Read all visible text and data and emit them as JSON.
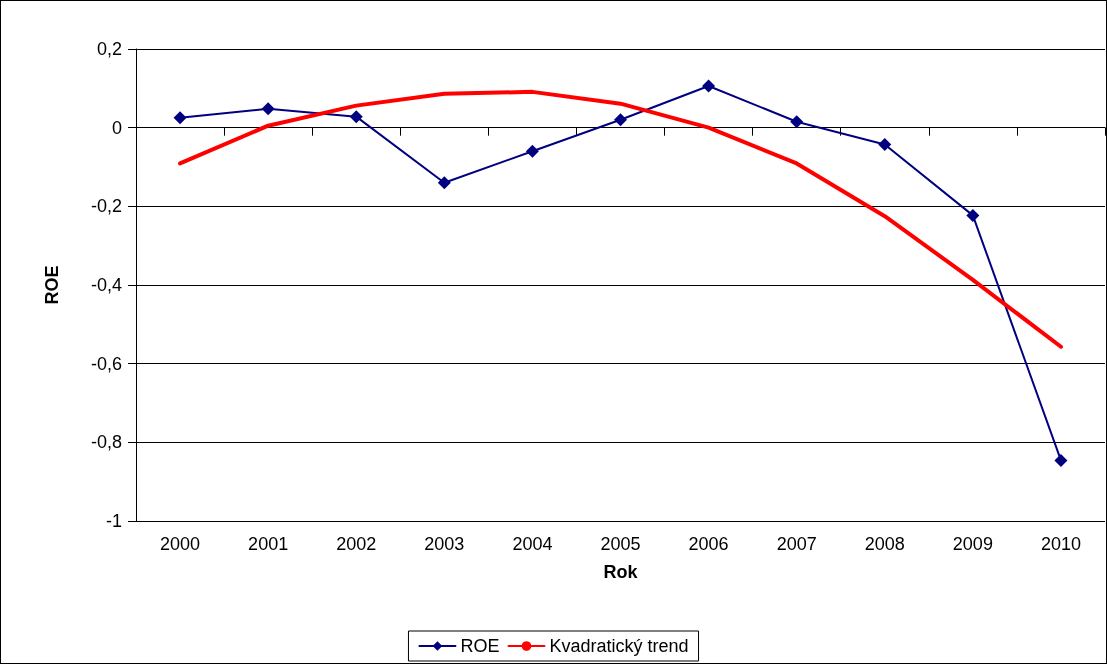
{
  "chart_data": {
    "type": "line",
    "xlabel": "Rok",
    "ylabel": "ROE",
    "categories": [
      "2000",
      "2001",
      "2002",
      "2003",
      "2004",
      "2005",
      "2006",
      "2007",
      "2008",
      "2009",
      "2010"
    ],
    "series": [
      {
        "name": "ROE",
        "color": "#000080",
        "marker": "diamond",
        "values": [
          0.025,
          0.048,
          0.028,
          -0.14,
          -0.06,
          0.02,
          0.106,
          0.015,
          -0.043,
          -0.223,
          -0.846
        ]
      },
      {
        "name": "Kvadratický trend",
        "color": "#ff0000",
        "marker": "none",
        "values": [
          -0.091,
          0.005,
          0.056,
          0.086,
          0.091,
          0.061,
          0,
          -0.091,
          -0.225,
          -0.387,
          -0.557
        ]
      }
    ],
    "ylim": [
      -1,
      0.2
    ],
    "yticks": [
      {
        "value": -1,
        "label": "-1"
      },
      {
        "value": -0.8,
        "label": "-0,8"
      },
      {
        "value": -0.6,
        "label": "-0,6"
      },
      {
        "value": -0.4,
        "label": "-0,4"
      },
      {
        "value": -0.2,
        "label": "-0,2"
      },
      {
        "value": 0,
        "label": "0"
      },
      {
        "value": 0.2,
        "label": "0,2"
      }
    ],
    "grid": "y",
    "legend": "bottom"
  }
}
